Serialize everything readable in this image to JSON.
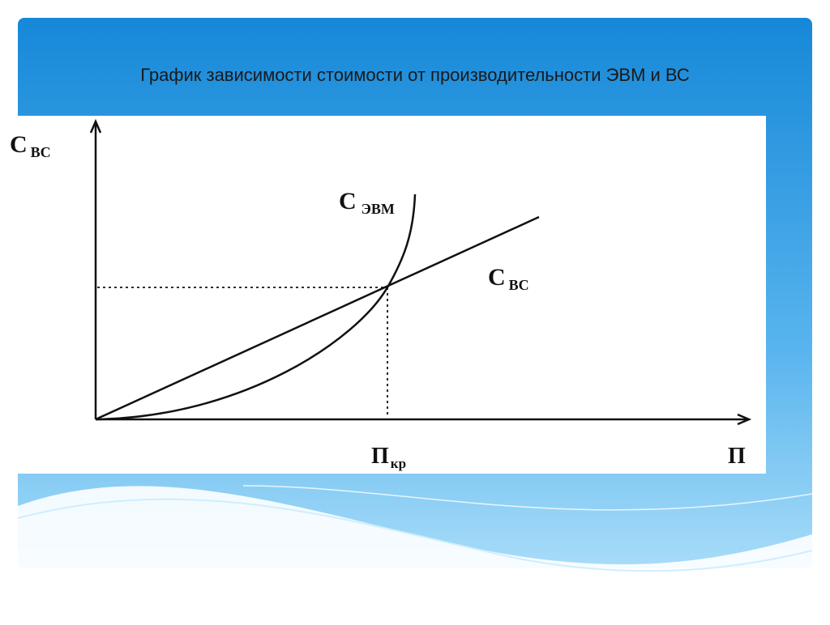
{
  "slide": {
    "title": "График зависимости стоимости от производительности ЭВМ и ВС"
  },
  "diagram": {
    "y_axis_label": {
      "main": "С",
      "sub": "ВС"
    },
    "curve_label": {
      "main": "С",
      "sub": "ЭВМ"
    },
    "line_label": {
      "main": "С",
      "sub": "ВС"
    },
    "critical_label": {
      "main": "П",
      "sub": "кр"
    },
    "x_axis_label": "П"
  }
}
